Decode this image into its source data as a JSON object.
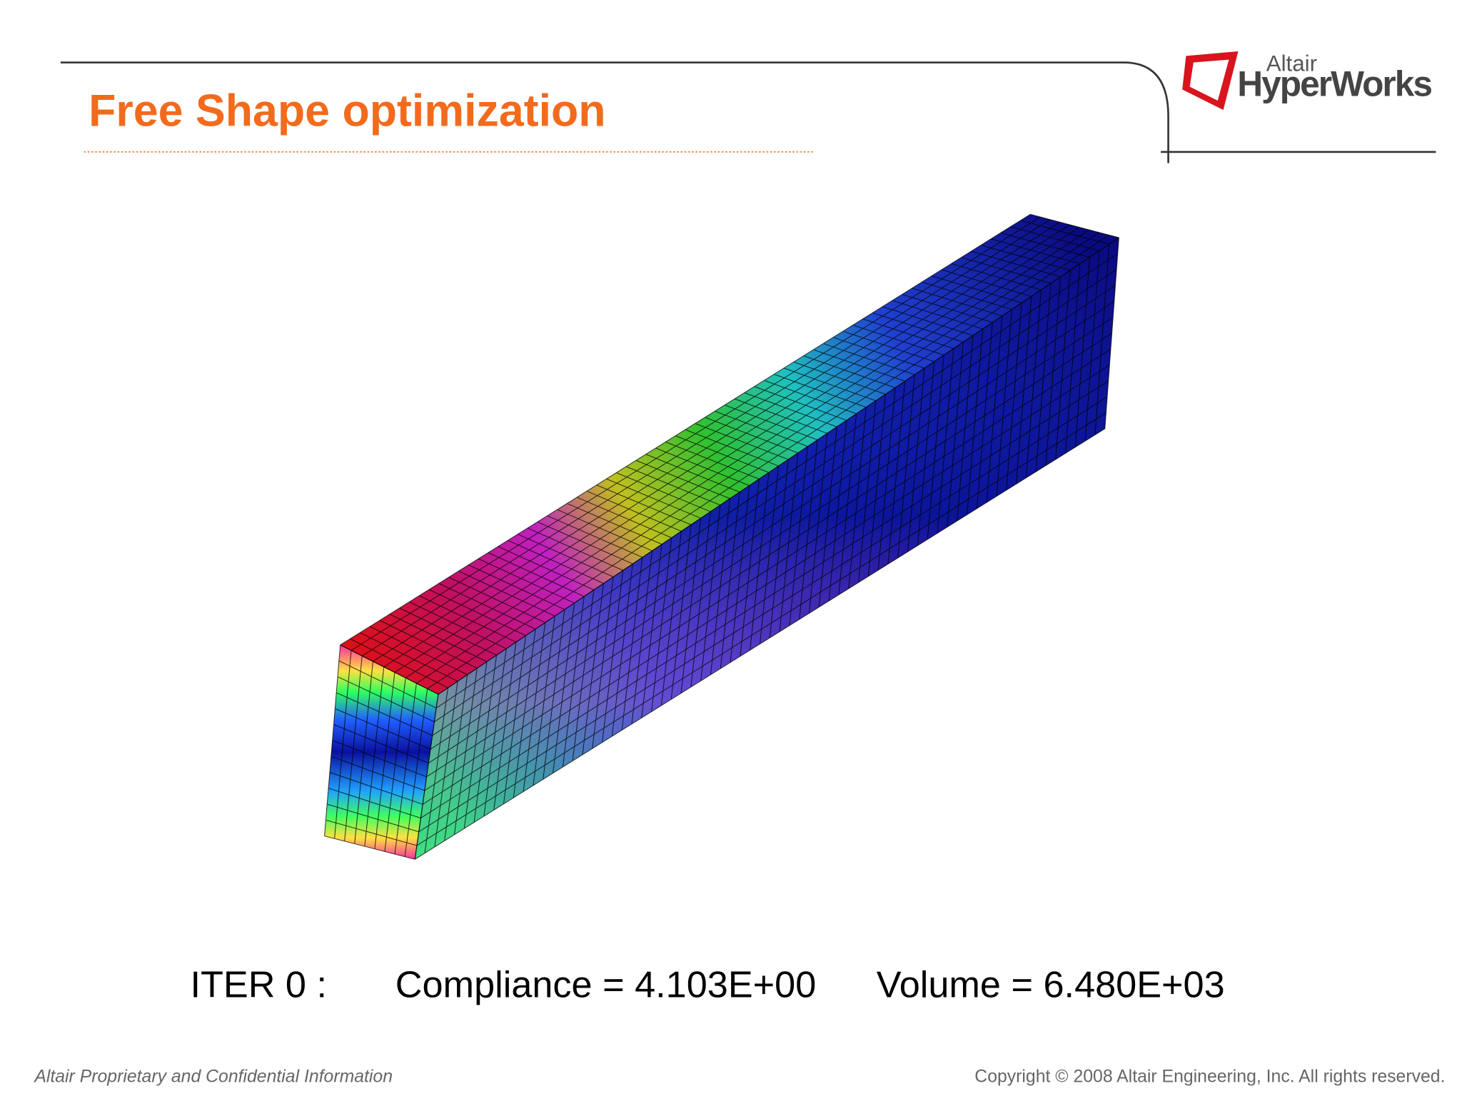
{
  "header": {
    "title": "Free Shape optimization",
    "logo": {
      "brand": "Altair",
      "product": "HyperWorks"
    }
  },
  "caption": {
    "iteration": "ITER 0 :",
    "compliance": "Compliance = 4.103E+00",
    "volume": "Volume = 6.480E+03"
  },
  "footer": {
    "left": "Altair Proprietary and Confidential Information",
    "right": "Copyright © 2008 Altair Engineering, Inc. All rights reserved."
  }
}
